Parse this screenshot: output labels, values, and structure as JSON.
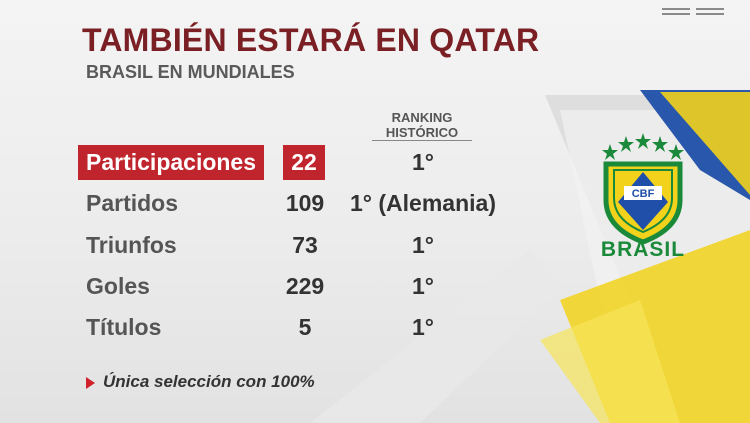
{
  "header": {
    "title": "TAMBIÉN ESTARÁ EN QATAR",
    "subtitle": "BRASIL EN MUNDIALES"
  },
  "table": {
    "ranking_header_line1": "RANKING",
    "ranking_header_line2": "HISTÓRICO",
    "rows": [
      {
        "label": "Participaciones",
        "value": "22",
        "rank": "1°",
        "highlighted": true
      },
      {
        "label": "Partidos",
        "value": "109",
        "rank": "1° (Alemania)",
        "highlighted": false
      },
      {
        "label": "Triunfos",
        "value": "73",
        "rank": "1°",
        "highlighted": false
      },
      {
        "label": "Goles",
        "value": "229",
        "rank": "1°",
        "highlighted": false
      },
      {
        "label": "Títulos",
        "value": "5",
        "rank": "1°",
        "highlighted": false
      }
    ]
  },
  "note": {
    "text": "Única selección con 100%",
    "marker_icon": "triangle-right-icon"
  },
  "crest": {
    "initials": "CBF",
    "name": "BRASIL",
    "icon": "cbf-crest-icon"
  },
  "colors": {
    "title": "#7a1f24",
    "highlight": "#c0242c",
    "brazil_green": "#1a8a3a",
    "brazil_yellow": "#f2d21b",
    "brazil_blue": "#1f4fa8"
  }
}
